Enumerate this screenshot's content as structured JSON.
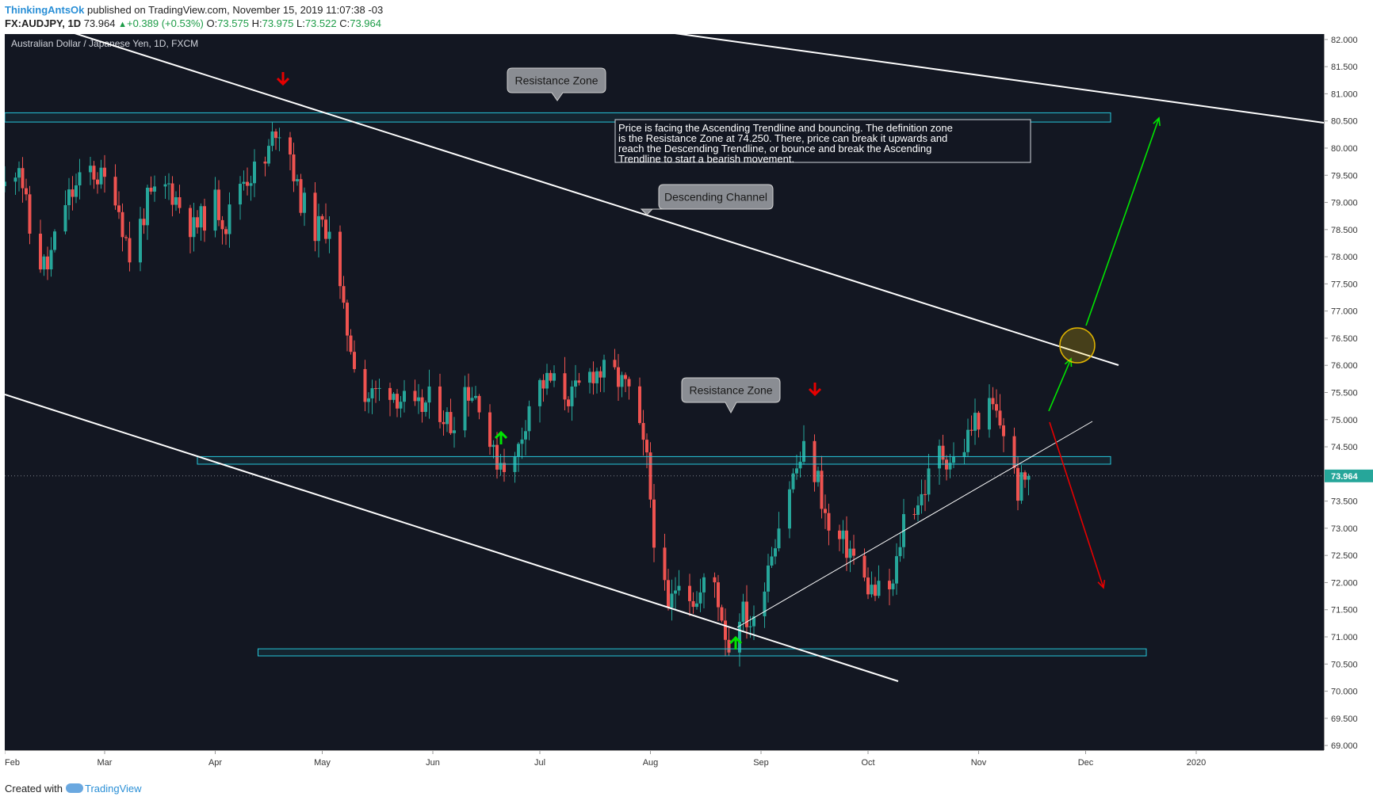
{
  "header": {
    "author": "ThinkingAntsOk",
    "published": "published on TradingView.com, November 15, 2019 11:07:38 -03",
    "symbol": "FX:AUDJPY, 1D",
    "last": "73.964",
    "change": "+0.389 (+0.53%)",
    "open_label": "O:",
    "open": "73.575",
    "high_label": "H:",
    "high": "73.975",
    "low_label": "L:",
    "low": "73.522",
    "close_label": "C:",
    "close": "73.964"
  },
  "footer": {
    "prefix": "Created with",
    "brand": "TradingView",
    "icon": "tradingview-cloud-icon"
  },
  "colors": {
    "background": "#131722",
    "up": "#26a69a",
    "down": "#ef5350",
    "zone": "#26c6da",
    "green_arrow": "#00e600",
    "red_arrow": "#e60000"
  },
  "chart_data": {
    "type": "candlestick",
    "title": "Australian Dollar / Japanese Yen, 1D, FXCM",
    "ylim": [
      68.9,
      82.1
    ],
    "y_ticks": [
      "82.000",
      "81.500",
      "81.000",
      "80.500",
      "80.000",
      "79.500",
      "79.000",
      "78.500",
      "78.000",
      "77.500",
      "77.000",
      "76.500",
      "76.000",
      "75.500",
      "75.000",
      "74.500",
      "74.000",
      "73.500",
      "73.000",
      "72.500",
      "72.000",
      "71.500",
      "71.000",
      "70.500",
      "70.000",
      "69.500",
      "69.000"
    ],
    "x_ticks": [
      "Feb",
      "Mar",
      "Apr",
      "May",
      "Jun",
      "Jul",
      "Aug",
      "Sep",
      "Oct",
      "Nov",
      "Dec",
      "2020"
    ],
    "last_price": 73.964,
    "price_path": [
      [
        "2019-02-01",
        79.3
      ],
      [
        "2019-02-05",
        79.8
      ],
      [
        "2019-02-09",
        78.0
      ],
      [
        "2019-02-13",
        77.8
      ],
      [
        "2019-02-18",
        79.0
      ],
      [
        "2019-02-25",
        79.6
      ],
      [
        "2019-03-04",
        79.2
      ],
      [
        "2019-03-08",
        78.0
      ],
      [
        "2019-03-13",
        79.0
      ],
      [
        "2019-03-19",
        79.3
      ],
      [
        "2019-03-26",
        78.5
      ],
      [
        "2019-04-01",
        79.0
      ],
      [
        "2019-04-04",
        78.6
      ],
      [
        "2019-04-08",
        79.4
      ],
      [
        "2019-04-15",
        79.7
      ],
      [
        "2019-04-18",
        80.4
      ],
      [
        "2019-04-21",
        80.3
      ],
      [
        "2019-04-24",
        79.2
      ],
      [
        "2019-04-29",
        78.5
      ],
      [
        "2019-05-03",
        78.6
      ],
      [
        "2019-05-07",
        76.9
      ],
      [
        "2019-05-13",
        75.4
      ],
      [
        "2019-05-20",
        75.6
      ],
      [
        "2019-05-27",
        75.1
      ],
      [
        "2019-06-01",
        75.4
      ],
      [
        "2019-06-06",
        74.9
      ],
      [
        "2019-06-10",
        75.6
      ],
      [
        "2019-06-14",
        75.4
      ],
      [
        "2019-06-18",
        74.3
      ],
      [
        "2019-06-24",
        74.2
      ],
      [
        "2019-06-29",
        75.6
      ],
      [
        "2019-07-04",
        75.7
      ],
      [
        "2019-07-10",
        75.4
      ],
      [
        "2019-07-16",
        75.9
      ],
      [
        "2019-07-22",
        75.8
      ],
      [
        "2019-07-26",
        75.5
      ],
      [
        "2019-07-31",
        74.2
      ],
      [
        "2019-08-02",
        72.9
      ],
      [
        "2019-08-06",
        71.4
      ],
      [
        "2019-08-09",
        72.2
      ],
      [
        "2019-08-14",
        71.6
      ],
      [
        "2019-08-18",
        72.3
      ],
      [
        "2019-08-23",
        70.8
      ],
      [
        "2019-08-26",
        71.5
      ],
      [
        "2019-08-30",
        71.2
      ],
      [
        "2019-09-03",
        72.4
      ],
      [
        "2019-09-09",
        73.8
      ],
      [
        "2019-09-13",
        74.4
      ],
      [
        "2019-09-17",
        73.9
      ],
      [
        "2019-09-20",
        72.9
      ],
      [
        "2019-09-26",
        72.6
      ],
      [
        "2019-09-30",
        72.0
      ],
      [
        "2019-10-03",
        71.8
      ],
      [
        "2019-10-08",
        71.9
      ],
      [
        "2019-10-11",
        73.2
      ],
      [
        "2019-10-16",
        73.6
      ],
      [
        "2019-10-21",
        74.4
      ],
      [
        "2019-10-26",
        74.2
      ],
      [
        "2019-10-31",
        75.0
      ],
      [
        "2019-11-05",
        75.2
      ],
      [
        "2019-11-08",
        74.8
      ],
      [
        "2019-11-12",
        73.7
      ],
      [
        "2019-11-15",
        73.96
      ]
    ],
    "zones": [
      {
        "label": "Resistance Zone",
        "top": 80.65,
        "bottom": 80.48,
        "from": "2019-02-01",
        "to": "2019-12-08"
      },
      {
        "label": "Resistance Zone",
        "top": 74.32,
        "bottom": 74.18,
        "from": "2019-03-27",
        "to": "2019-12-08"
      },
      {
        "label": "",
        "top": 70.78,
        "bottom": 70.65,
        "from": "2019-04-13",
        "to": "2019-12-18"
      }
    ],
    "callouts": [
      "Descending Channel"
    ],
    "annotation": "Price is facing the Ascending Trendline and bouncing. The definition zone is the Resistance Zone at 74.250. There, price can break it upwards and reach the Descending Trendline, or bounce and break the Ascending Trendline to start a bearish movement."
  }
}
